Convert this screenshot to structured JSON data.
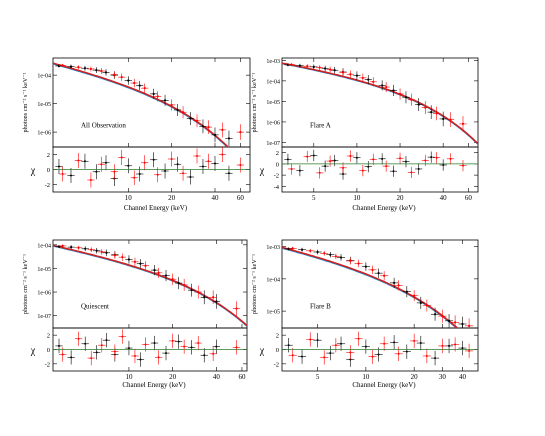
{
  "figure": {
    "colors": {
      "series_black": "#000000",
      "series_red": "#ff0000",
      "model_blue": "#1a8fd8",
      "model_red": "#cc2222",
      "residual_zero_line": "#2a7a2a"
    }
  },
  "chart_data": [
    {
      "type": "scatter",
      "title": "",
      "panel_label": "All Observation",
      "xlabel": "Channel Energy (keV)",
      "ylabel": "photons cm⁻² s⁻¹ keV⁻¹",
      "residual_ylabel": "χ",
      "x_scale": "log",
      "y_scale": "log",
      "xlim": [
        3,
        70
      ],
      "ylim": [
        3e-07,
        0.0004
      ],
      "x_ticks": [
        10,
        20,
        40,
        60
      ],
      "x_tick_labels": [
        "10",
        "20",
        "40",
        "60"
      ],
      "y_ticks": [
        0.0001,
        1e-05,
        1e-06
      ],
      "y_tick_labels": [
        "1e-04",
        "1e-05",
        "1e-06"
      ],
      "residual_ylim": [
        -3,
        3
      ],
      "residual_ticks": [
        -2,
        0,
        2
      ],
      "residual_tick_labels": [
        "-2",
        "0",
        "2"
      ],
      "model": {
        "norm": 0.00025,
        "slope": 1.15,
        "ecut": 13
      },
      "series": [
        {
          "color": "#000000",
          "x": [
            3.3,
            4,
            5,
            6,
            7,
            8,
            10,
            12,
            15,
            18,
            22,
            27,
            33,
            40,
            50
          ],
          "y": [
            0.00021,
            0.0002,
            0.000175,
            0.00015,
            0.000125,
            0.0001,
            6.5e-05,
            4.3e-05,
            2.2e-05,
            1.3e-05,
            6e-06,
            3e-06,
            1.6e-06,
            8e-07,
            6e-07
          ],
          "residuals": [
            0.4,
            -0.8,
            1.1,
            -0.3,
            0.9,
            -1.2,
            0.5,
            -0.6,
            1.3,
            -0.2,
            0.7,
            -1.0,
            0.4,
            0.8,
            -0.5
          ]
        },
        {
          "color": "#ff0000",
          "x": [
            3.5,
            4.5,
            5.5,
            6.5,
            8,
            9,
            11,
            13,
            16,
            20,
            24,
            30,
            36,
            45,
            60
          ],
          "y": [
            0.00022,
            0.00019,
            0.000165,
            0.00014,
            0.000105,
            8.5e-05,
            5.3e-05,
            3.5e-05,
            1.8e-05,
            9e-06,
            5e-06,
            2.5e-06,
            1.5e-06,
            1.2e-06,
            1e-06
          ],
          "residuals": [
            -0.6,
            1.2,
            -1.4,
            0.7,
            -0.3,
            1.6,
            -1.1,
            0.9,
            -0.7,
            1.4,
            -0.5,
            1.8,
            1.1,
            2.0,
            0.6
          ]
        }
      ]
    },
    {
      "type": "scatter",
      "title": "",
      "panel_label": "Flare A",
      "xlabel": "Channel Energy (keV)",
      "ylabel": "photons cm⁻² s⁻¹ keV⁻¹",
      "residual_ylabel": "χ",
      "x_scale": "log",
      "y_scale": "log",
      "xlim": [
        3,
        70
      ],
      "ylim": [
        6e-08,
        0.0013
      ],
      "x_ticks": [
        5,
        10,
        20,
        40,
        60
      ],
      "x_tick_labels": [
        "5",
        "10",
        "20",
        "40",
        "60"
      ],
      "y_ticks": [
        0.001,
        0.0001,
        1e-05,
        1e-06,
        1e-07
      ],
      "y_tick_labels": [
        "1e-03",
        "1e-04",
        "1e-05",
        "1e-06",
        "1e-07"
      ],
      "residual_ylim": [
        -5,
        3
      ],
      "residual_ticks": [
        -4,
        -2,
        0,
        2
      ],
      "residual_tick_labels": [
        "-4",
        "-2",
        "0",
        "2"
      ],
      "model": {
        "norm": 0.0007,
        "slope": 1.1,
        "ecut": 12
      },
      "series": [
        {
          "color": "#000000",
          "x": [
            3.3,
            4,
            5,
            6,
            7,
            8,
            10,
            12,
            15,
            18,
            22,
            27,
            33,
            40
          ],
          "y": [
            0.0006,
            0.00055,
            0.00048,
            0.0004,
            0.00033,
            0.00027,
            0.00018,
            0.000115,
            6e-05,
            3.4e-05,
            1.6e-05,
            7e-06,
            3e-06,
            1.4e-06
          ],
          "residuals": [
            0.8,
            -1.2,
            1.5,
            -0.4,
            0.6,
            -1.8,
            1.1,
            -0.5,
            0.9,
            -1.3,
            0.4,
            -0.9,
            1.2,
            -0.2
          ]
        },
        {
          "color": "#ff0000",
          "x": [
            3.5,
            4.5,
            5.5,
            6.5,
            8,
            9,
            11,
            13,
            16,
            20,
            24,
            30,
            36,
            45,
            55
          ],
          "y": [
            0.00062,
            0.00052,
            0.00044,
            0.00036,
            0.00026,
            0.00021,
            0.00014,
            9e-05,
            5e-05,
            2.3e-05,
            1.2e-05,
            5e-06,
            2.6e-06,
            1.3e-06,
            8e-07
          ],
          "residuals": [
            -0.9,
            1.3,
            -1.6,
            0.5,
            -0.7,
            1.4,
            -1.2,
            0.8,
            -0.4,
            1.0,
            -1.5,
            0.6,
            1.1,
            0.9,
            -0.3
          ]
        }
      ]
    },
    {
      "type": "scatter",
      "title": "",
      "panel_label": "Quiescent",
      "xlabel": "Channel Energy (keV)",
      "ylabel": "photons cm⁻² s⁻¹ keV⁻¹",
      "residual_ylabel": "χ",
      "x_scale": "log",
      "y_scale": "log",
      "xlim": [
        3,
        65
      ],
      "ylim": [
        3e-08,
        0.00016
      ],
      "x_ticks": [
        10,
        20,
        40,
        60
      ],
      "x_tick_labels": [
        "10",
        "20",
        "40",
        "60"
      ],
      "y_ticks": [
        0.0001,
        1e-05,
        1e-06,
        1e-07
      ],
      "y_tick_labels": [
        "1e-04",
        "1e-05",
        "1e-06",
        "1e-07"
      ],
      "residual_ylim": [
        -3,
        3
      ],
      "residual_ticks": [
        -2,
        0,
        2
      ],
      "residual_tick_labels": [
        "-2",
        "0",
        "2"
      ],
      "model": {
        "norm": 9e-05,
        "slope": 1.2,
        "ecut": 15
      },
      "series": [
        {
          "color": "#000000",
          "x": [
            3.3,
            4,
            5,
            6,
            7,
            8,
            10,
            12,
            15,
            18,
            22,
            27,
            33,
            40
          ],
          "y": [
            8.5e-05,
            8e-05,
            6.8e-05,
            5.6e-05,
            4.6e-05,
            3.8e-05,
            2.4e-05,
            1.6e-05,
            8.5e-06,
            5e-06,
            2.4e-06,
            1.2e-06,
            6e-07,
            4e-07
          ],
          "residuals": [
            0.5,
            -1.1,
            0.8,
            -0.4,
            1.3,
            -0.7,
            0.2,
            -1.4,
            0.9,
            -0.5,
            1.1,
            0.3,
            -0.8,
            0.4
          ]
        },
        {
          "color": "#ff0000",
          "x": [
            3.5,
            4.5,
            5.5,
            6.5,
            8,
            9,
            11,
            13,
            16,
            20,
            24,
            30,
            38,
            55
          ],
          "y": [
            9e-05,
            7.5e-05,
            6.2e-05,
            5e-05,
            3.6e-05,
            3e-05,
            1.9e-05,
            1.3e-05,
            6.5e-06,
            3.5e-06,
            2e-06,
            1e-06,
            6e-07,
            2e-07
          ],
          "residuals": [
            -0.7,
            1.5,
            -1.2,
            0.6,
            -0.3,
            1.8,
            -0.9,
            0.7,
            -1.1,
            1.2,
            0.4,
            0.9,
            -0.6,
            0.3
          ]
        }
      ]
    },
    {
      "type": "scatter",
      "title": "",
      "panel_label": "Flare B",
      "xlabel": "Channel Energy (keV)",
      "ylabel": "photons cm⁻² s⁻¹ keV⁻¹",
      "residual_ylabel": "χ",
      "x_scale": "log",
      "y_scale": "log",
      "xlim": [
        3,
        50
      ],
      "ylim": [
        3e-06,
        0.0016
      ],
      "x_ticks": [
        5,
        10,
        20,
        30,
        40
      ],
      "x_tick_labels": [
        "5",
        "10",
        "20",
        "30",
        "40"
      ],
      "y_ticks": [
        0.001,
        0.0001,
        1e-05
      ],
      "y_tick_labels": [
        "1e-03",
        "1e-04",
        "1e-05"
      ],
      "residual_ylim": [
        -3,
        3
      ],
      "residual_ticks": [
        -2,
        0,
        2
      ],
      "residual_tick_labels": [
        "-2",
        "0",
        "2"
      ],
      "model": {
        "norm": 0.0009,
        "slope": 1.05,
        "ecut": 11
      },
      "series": [
        {
          "color": "#000000",
          "x": [
            3.3,
            4,
            5,
            6,
            7,
            8,
            10,
            12,
            15,
            18,
            22,
            27,
            33,
            40
          ],
          "y": [
            0.00085,
            0.0008,
            0.00068,
            0.00056,
            0.00046,
            0.00037,
            0.00024,
            0.00015,
            7.5e-05,
            4e-05,
            1.8e-05,
            8e-06,
            5e-06,
            4e-06
          ],
          "residuals": [
            0.6,
            -1.0,
            1.3,
            -0.5,
            0.8,
            -1.4,
            0.4,
            -0.7,
            1.0,
            -0.3,
            0.9,
            -1.2,
            0.5,
            0.2
          ]
        },
        {
          "color": "#ff0000",
          "x": [
            3.5,
            4.5,
            5.5,
            6.5,
            8,
            9,
            11,
            13,
            16,
            20,
            24,
            30,
            36,
            44
          ],
          "y": [
            0.00088,
            0.00074,
            0.00062,
            0.0005,
            0.00036,
            0.0003,
            0.00019,
            0.000125,
            6.3e-05,
            3e-05,
            1.5e-05,
            7e-06,
            4.5e-06,
            3.5e-06
          ],
          "residuals": [
            -0.8,
            1.4,
            -1.1,
            0.6,
            -0.4,
            1.5,
            -1.0,
            0.8,
            -0.6,
            1.2,
            -0.9,
            0.5,
            0.7,
            -0.2
          ]
        }
      ]
    }
  ]
}
